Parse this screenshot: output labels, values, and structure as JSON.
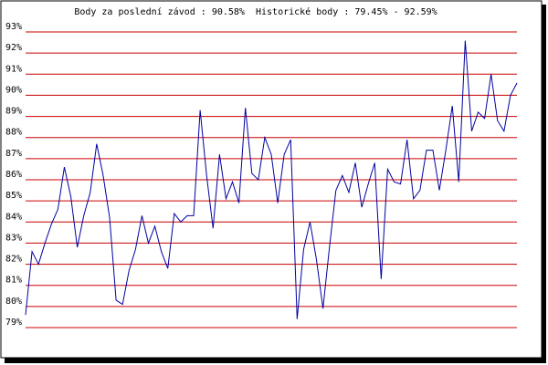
{
  "chart_data": {
    "type": "line",
    "title": "Body za poslední závod : 90.58%  Historické body : 79.45% - 92.59%",
    "series": [
      {
        "color": "#0000a0",
        "values": [
          79.6,
          82.6,
          82.0,
          83.0,
          83.9,
          84.6,
          86.6,
          85.2,
          82.8,
          84.3,
          85.4,
          87.7,
          86.2,
          84.2,
          80.3,
          80.1,
          81.7,
          82.7,
          84.3,
          83.0,
          83.8,
          82.6,
          81.8,
          84.4,
          84.0,
          84.3,
          84.3,
          89.3,
          86.2,
          83.7,
          87.2,
          85.1,
          85.9,
          84.9,
          89.4,
          86.3,
          86.0,
          88.0,
          87.2,
          84.9,
          87.2,
          87.9,
          79.4,
          82.7,
          84.0,
          82.2,
          79.9,
          82.8,
          85.5,
          86.2,
          85.4,
          86.8,
          84.7,
          85.8,
          86.8,
          81.3,
          86.5,
          85.9,
          85.8,
          87.9,
          85.1,
          85.5,
          87.4,
          87.4,
          85.5,
          87.4,
          89.5,
          85.9,
          92.59,
          88.3,
          89.2,
          88.9,
          91.0,
          88.8,
          88.3,
          90.0,
          90.58
        ]
      }
    ],
    "ylim": [
      79,
      93
    ],
    "yticks": [
      {
        "value": 79,
        "label": "79%"
      },
      {
        "value": 80,
        "label": "80%"
      },
      {
        "value": 81,
        "label": "81%"
      },
      {
        "value": 82,
        "label": "82%"
      },
      {
        "value": 83,
        "label": "83%"
      },
      {
        "value": 84,
        "label": "84%"
      },
      {
        "value": 85,
        "label": "85%"
      },
      {
        "value": 86,
        "label": "86%"
      },
      {
        "value": 87,
        "label": "87%"
      },
      {
        "value": 88,
        "label": "88%"
      },
      {
        "value": 89,
        "label": "89%"
      },
      {
        "value": 90,
        "label": "90%"
      },
      {
        "value": 91,
        "label": "91%"
      },
      {
        "value": 92,
        "label": "92%"
      },
      {
        "value": 93,
        "label": "93%"
      }
    ],
    "grid": true,
    "grid_color": "#cc0000"
  }
}
